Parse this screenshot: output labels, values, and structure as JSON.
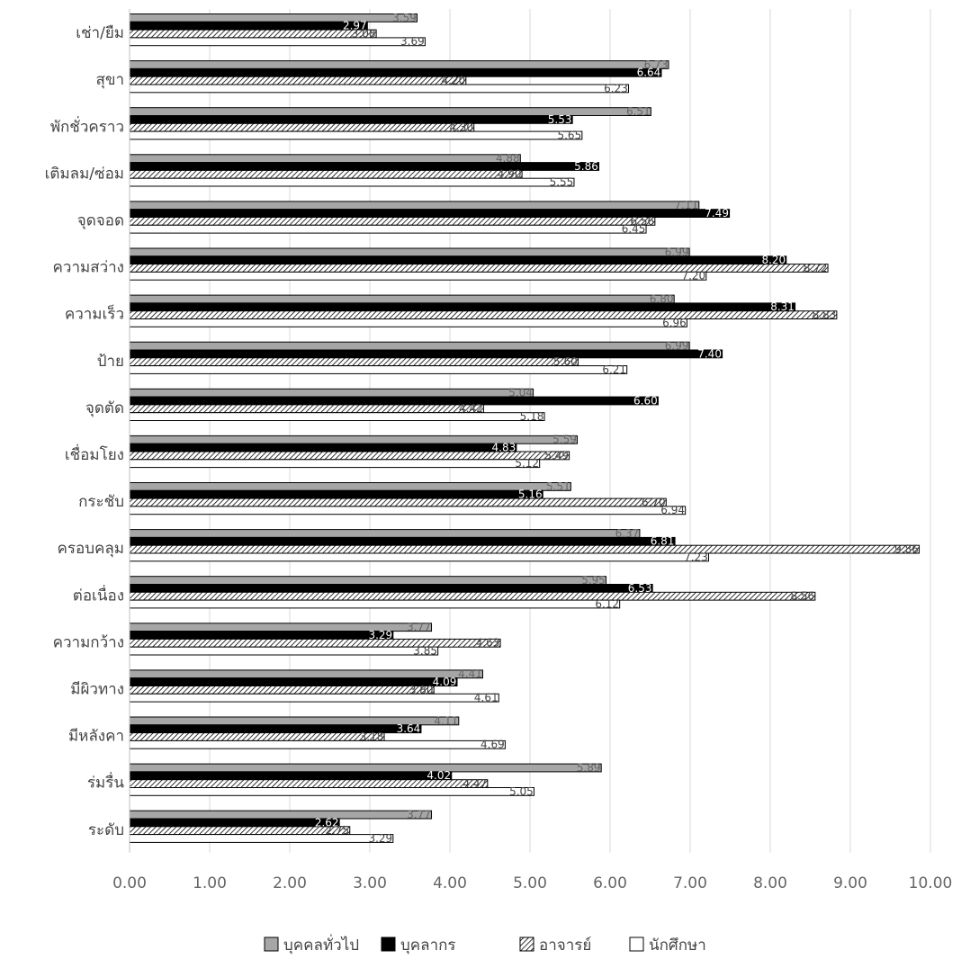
{
  "chart_data": {
    "type": "bar",
    "orientation": "horizontal",
    "categories": [
      "เช่า/ยืม",
      "สุขา",
      "พักชั่วคราว",
      "เติมลม/ซ่อม",
      "จุดจอด",
      "ความสว่าง",
      "ความเร็ว",
      "ป้าย",
      "จุดตัด",
      "เชื่อมโยง",
      "กระชับ",
      "ครอบคลุม",
      "ต่อเนื่อง",
      "ความกว้าง",
      "มีผิวทาง",
      "มีหลังคา",
      "ร่มรื่น",
      "ระดับ"
    ],
    "series": [
      {
        "name": "บุคคลทั่วไป",
        "fill": "#a6a6a6",
        "pattern": "solid",
        "values": [
          3.59,
          6.73,
          6.51,
          4.88,
          7.11,
          6.99,
          6.8,
          6.99,
          5.04,
          5.59,
          5.51,
          6.37,
          5.95,
          3.77,
          4.41,
          4.11,
          5.89,
          3.77
        ]
      },
      {
        "name": "บุคลากร",
        "fill": "#000000",
        "pattern": "solid",
        "values": [
          2.97,
          6.64,
          5.53,
          5.86,
          7.49,
          8.2,
          8.31,
          7.4,
          6.6,
          4.83,
          5.16,
          6.81,
          6.53,
          3.29,
          4.09,
          3.64,
          4.02,
          2.62
        ]
      },
      {
        "name": "อาจารย์",
        "fill": "#ffffff",
        "pattern": "hatch",
        "values": [
          3.08,
          4.2,
          4.3,
          4.9,
          6.56,
          8.72,
          8.83,
          5.6,
          4.42,
          5.49,
          6.7,
          9.86,
          8.56,
          4.63,
          3.8,
          3.18,
          4.47,
          2.75
        ]
      },
      {
        "name": "นักศึกษา",
        "fill": "#ffffff",
        "pattern": "outline",
        "values": [
          3.69,
          6.23,
          5.65,
          5.55,
          6.45,
          7.2,
          6.96,
          6.21,
          5.18,
          5.12,
          6.94,
          7.23,
          6.12,
          3.85,
          4.61,
          4.69,
          5.05,
          3.29
        ]
      }
    ],
    "value_labels": [
      [
        "3.59",
        "6.73",
        "6.51",
        "4.88",
        "7.11",
        "6.99",
        "6.80",
        "6.99",
        "5.04",
        "5.59",
        "5.51",
        "6.37",
        "5.95",
        "3.77",
        "4.41",
        "4.11",
        "5.89",
        "3.77"
      ],
      [
        "2.97",
        "6.64",
        "5.53",
        "5.86",
        "7.49",
        "8.20",
        "8.31",
        "7.40",
        "6.60",
        "4.83",
        "5.16",
        "6.81",
        "6.53",
        "3.29",
        "4.09",
        "3.64",
        "4.02",
        "2.62"
      ],
      [
        "3.08",
        "4.20",
        "4.30",
        "4.90",
        "6.56",
        "8.72",
        "8.83",
        "5.60",
        "4.42",
        "5.49",
        "6.70",
        "9.86",
        "8.56",
        "4.63",
        "3.80",
        "3.18",
        "4.47",
        "2.75"
      ],
      [
        "3.69",
        "6.23",
        "5.65",
        "5.55",
        "6.45",
        "7.20",
        "6.96",
        "6.21",
        "5.18",
        "5.12",
        "6.94",
        "7.23",
        "6.12",
        "3.85",
        "4.61",
        "4.69",
        "5.05",
        "3.29"
      ]
    ],
    "xlim": [
      0,
      10
    ],
    "x_ticks": [
      "0.00",
      "1.00",
      "2.00",
      "3.00",
      "4.00",
      "5.00",
      "6.00",
      "7.00",
      "8.00",
      "9.00",
      "10.00"
    ],
    "grid": true,
    "legend": "bottom",
    "title": "",
    "xlabel": "",
    "ylabel": ""
  }
}
